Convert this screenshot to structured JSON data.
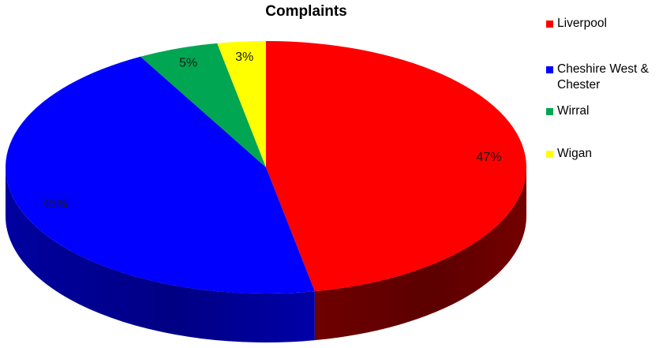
{
  "chart_data": {
    "type": "pie",
    "title": "Complaints",
    "slices": [
      {
        "label": "Liverpool",
        "value": 47,
        "data_label": "47%",
        "color": "#ff0000",
        "side_color": "#7a0000"
      },
      {
        "label": "Cheshire West & Chester",
        "value": 45,
        "data_label": "45%",
        "color": "#0000ff",
        "side_color": "#0000b0"
      },
      {
        "label": "Wirral",
        "value": 5,
        "data_label": "5%",
        "color": "#00a651",
        "side_color": "#006b34"
      },
      {
        "label": "Wigan",
        "value": 3,
        "data_label": "3%",
        "color": "#ffff00",
        "side_color": "#a8a800"
      }
    ],
    "legend_position": "right",
    "three_d": true
  }
}
